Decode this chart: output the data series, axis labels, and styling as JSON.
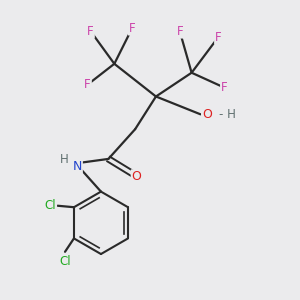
{
  "background_color": "#ebebed",
  "bond_color": "#2a2a2a",
  "atom_colors": {
    "F": "#cc44aa",
    "O": "#dd2222",
    "N": "#2244cc",
    "Cl": "#22aa22",
    "H_gray": "#607070",
    "C": "#2a2a2a"
  },
  "figsize": [
    3.0,
    3.0
  ],
  "dpi": 100
}
